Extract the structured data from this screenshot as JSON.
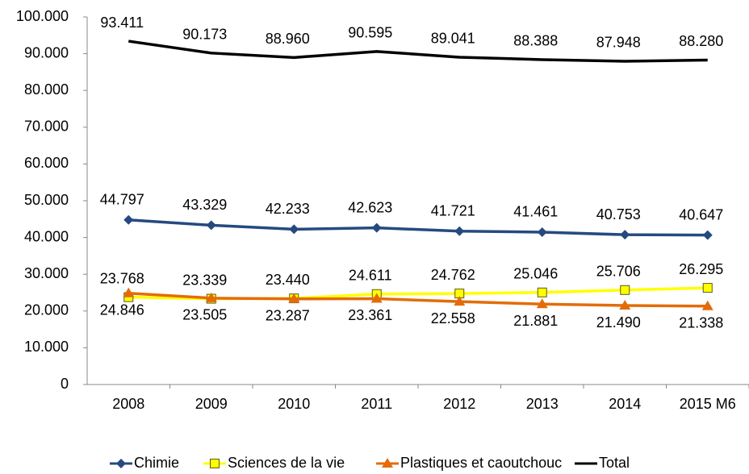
{
  "chart_data": {
    "type": "line",
    "categories": [
      "2008",
      "2009",
      "2010",
      "2011",
      "2012",
      "2013",
      "2014",
      "2015 M6"
    ],
    "ylim": [
      0,
      100000
    ],
    "yticks": [
      0,
      {
        "value": 10000,
        "label": "10.000"
      },
      {
        "value": 20000,
        "label": "20.000"
      },
      {
        "value": 30000,
        "label": "30.000"
      },
      {
        "value": 40000,
        "label": "40.000"
      },
      {
        "value": 50000,
        "label": "50.000"
      },
      {
        "value": 60000,
        "label": "60.000"
      },
      {
        "value": 70000,
        "label": "70.000"
      },
      {
        "value": 80000,
        "label": "80.000"
      },
      {
        "value": 90000,
        "label": "90.000"
      },
      {
        "value": 100000,
        "label": "100.000"
      }
    ],
    "grid": false,
    "legend": "bottom",
    "series": [
      {
        "name": "Chimie",
        "color": "#254a7f",
        "marker": "diamond",
        "values": [
          44797,
          43329,
          42233,
          42623,
          41721,
          41461,
          40753,
          40647
        ],
        "value_labels": [
          "44.797",
          "43.329",
          "42.233",
          "42.623",
          "41.721",
          "41.461",
          "40.753",
          "40.647"
        ]
      },
      {
        "name": "Sciences de la vie",
        "color": "#ffff00",
        "marker": "square",
        "values": [
          23768,
          23339,
          23440,
          24611,
          24762,
          25046,
          25706,
          26295
        ],
        "value_labels": [
          "23.768",
          "23.339",
          "23.440",
          "24.611",
          "24.762",
          "25.046",
          "25.706",
          "26.295"
        ]
      },
      {
        "name": "Plastiques et caoutchouc",
        "color": "#e36c0a",
        "marker": "triangle",
        "values": [
          24846,
          23505,
          23287,
          23361,
          22558,
          21881,
          21490,
          21338
        ],
        "value_labels": [
          "24.846",
          "23.505",
          "23.287",
          "23.361",
          "22.558",
          "21.881",
          "21.490",
          "21.338"
        ]
      },
      {
        "name": "Total",
        "color": "#000000",
        "marker": "none",
        "values": [
          93411,
          90173,
          88960,
          90595,
          89041,
          88388,
          87948,
          88280
        ],
        "value_labels": [
          "93.411",
          "90.173",
          "88.960",
          "90.595",
          "89.041",
          "88.388",
          "87.948",
          "88.280"
        ]
      }
    ]
  }
}
